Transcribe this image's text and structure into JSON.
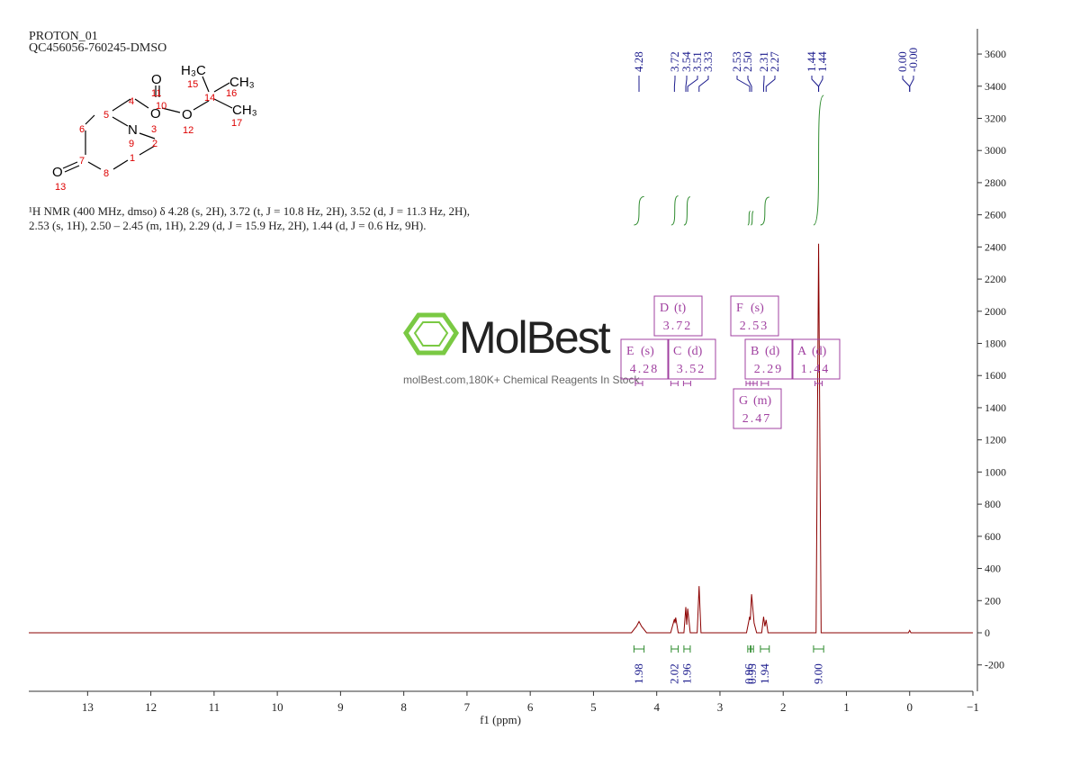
{
  "header": {
    "title": "PROTON_01",
    "sample": "QC456056-760245-DMSO"
  },
  "description": {
    "lines": [
      "¹H NMR (400 MHz, dmso) δ 4.28 (s, 2H), 3.72 (t, J = 10.8 Hz, 2H), 3.52 (d, J = 11.3 Hz, 2H),",
      "2.53 (s, 1H), 2.50 – 2.45 (m, 1H), 2.29 (d, J = 15.9 Hz, 2H), 1.44 (d, J = 0.6 Hz, 9H)."
    ]
  },
  "molecule": {
    "atoms": [
      "O",
      "11",
      "10",
      "O",
      "3",
      "O",
      "12",
      "H₃C",
      "15",
      "14",
      "16",
      "CH₃",
      "CH₃",
      "17",
      "4",
      "5",
      "6",
      "N",
      "9",
      "2",
      "1",
      "7",
      "8",
      "O",
      "13"
    ]
  },
  "watermark": {
    "brand": "MolBest",
    "tagline": "molBest.com,180K+ Chemical Reagents In Stock"
  },
  "chart_data": {
    "type": "nmr",
    "x_label": "f1 (ppm)",
    "color": "#8b0000",
    "xlim": [
      13.93,
      -1
    ],
    "xticks": [
      13,
      12,
      11,
      10,
      9,
      8,
      7,
      6,
      5,
      4,
      3,
      2,
      1,
      0,
      {
        "value": -1,
        "label": "−1"
      }
    ],
    "ylim": [
      -364,
      3757
    ],
    "yticks": [
      -200,
      0,
      200,
      400,
      600,
      800,
      1000,
      1200,
      1400,
      1600,
      1800,
      2000,
      2200,
      2400,
      2600,
      2800,
      3000,
      3200,
      3400,
      3600
    ],
    "x": [
      13.93,
      4.4,
      4.32,
      4.28,
      4.24,
      4.16,
      3.78,
      3.72,
      3.71,
      3.7,
      3.66,
      3.57,
      3.54,
      3.525,
      3.51,
      3.47,
      3.36,
      3.33,
      3.3,
      2.58,
      2.53,
      2.52,
      2.5,
      2.46,
      2.42,
      2.34,
      2.31,
      2.29,
      2.27,
      2.24,
      1.48,
      1.44,
      1.4,
      0.02,
      0,
      -0.02,
      -1
    ],
    "values": [
      0,
      0,
      40,
      70,
      40,
      0,
      0,
      85,
      60,
      95,
      0,
      0,
      160,
      50,
      150,
      0,
      0,
      290,
      0,
      0,
      100,
      80,
      240,
      60,
      0,
      0,
      100,
      40,
      80,
      0,
      0,
      2420,
      0,
      0,
      15,
      0,
      0
    ],
    "peak_labels": [
      4.28,
      3.72,
      3.54,
      3.51,
      3.33,
      2.53,
      {
        "value": 2.5,
        "label": "2.50"
      },
      2.31,
      2.27,
      1.44,
      1.44,
      {
        "value": 0,
        "label": "0.00"
      },
      {
        "value": 0,
        "label": "-0.00"
      }
    ],
    "integrals": [
      {
        "from": 4.36,
        "to": 4.2,
        "value": 1.98
      },
      {
        "from": 3.77,
        "to": 3.66,
        "value": 2.02
      },
      {
        "from": 3.57,
        "to": 3.47,
        "value": 1.96
      },
      {
        "from": 2.56,
        "to": 2.52,
        "value": 0.96
      },
      {
        "from": 2.51,
        "to": 2.47,
        "value": 0.95
      },
      {
        "from": 2.36,
        "to": 2.22,
        "value": 1.94
      },
      {
        "from": 1.52,
        "to": 1.36,
        "value": {
          "value": 9,
          "label": "9.00"
        }
      }
    ],
    "multiplets": [
      {
        "label": "E",
        "mult": "(s)",
        "shift": 4.28
      },
      {
        "label": "D",
        "mult": "(t)",
        "shift": 3.72
      },
      {
        "label": "C",
        "mult": "(d)",
        "shift": 3.52
      },
      {
        "label": "F",
        "mult": "(s)",
        "shift": 2.53
      },
      {
        "label": "B",
        "mult": "(d)",
        "shift": 2.29
      },
      {
        "label": "G",
        "mult": "(m)",
        "shift": 2.47
      },
      {
        "label": "A",
        "mult": "(d)",
        "shift": 1.44
      }
    ]
  }
}
